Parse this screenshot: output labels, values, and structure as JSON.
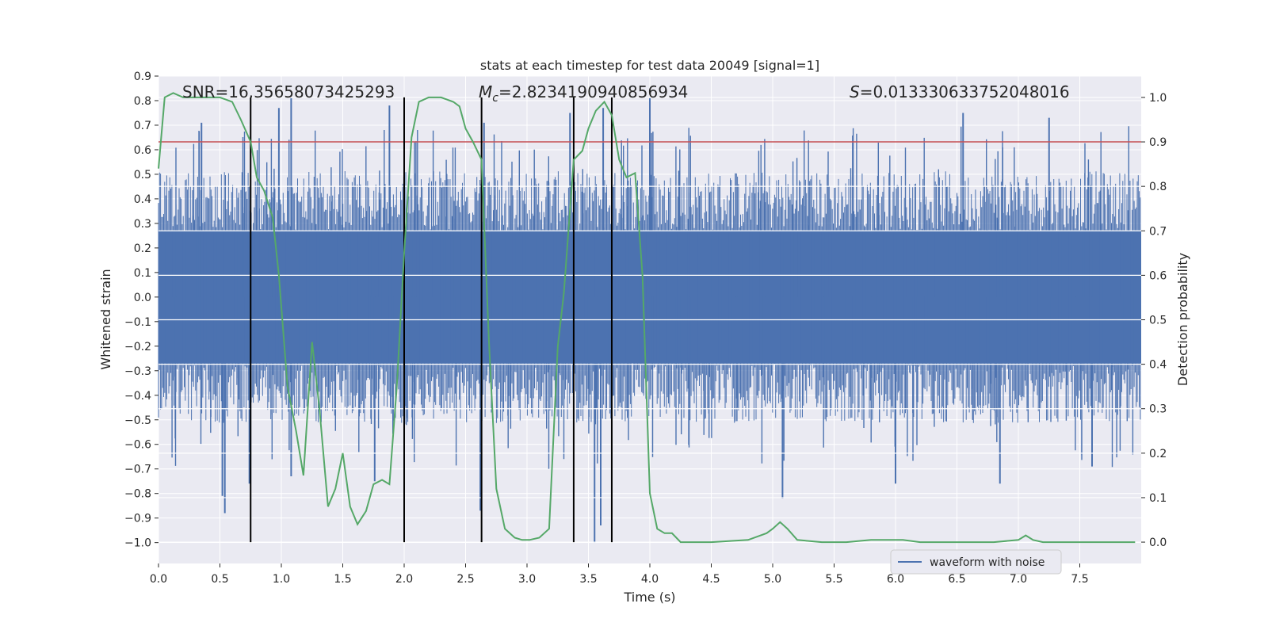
{
  "chart_data": {
    "type": "line",
    "title": "stats at each timestep for test data 20049 [signal=1]",
    "xlabel": "Time (s)",
    "ylabel_left": "Whitened strain",
    "ylabel_right": "Detection probability",
    "xlim": [
      0.0,
      8.0
    ],
    "ylim_left": [
      -1.085,
      0.9
    ],
    "ylim_right": [
      -0.048,
      1.048
    ],
    "x_ticks": [
      "0.0",
      "0.5",
      "1.0",
      "1.5",
      "2.0",
      "2.5",
      "3.0",
      "3.5",
      "4.0",
      "4.5",
      "5.0",
      "5.5",
      "6.0",
      "6.5",
      "7.0",
      "7.5"
    ],
    "y_left_ticks": [
      "0.9",
      "0.8",
      "0.7",
      "0.6",
      "0.5",
      "0.4",
      "0.3",
      "0.2",
      "0.1",
      "0.0",
      "−0.1",
      "−0.2",
      "−0.3",
      "−0.4",
      "−0.5",
      "−0.6",
      "−0.7",
      "−0.8",
      "−0.9",
      "−1.0"
    ],
    "y_right_ticks": [
      "1.0",
      "0.9",
      "0.8",
      "0.7",
      "0.6",
      "0.5",
      "0.4",
      "0.3",
      "0.2",
      "0.1",
      "0.0"
    ],
    "grid": true,
    "background": "#eaeaf2",
    "annotations": {
      "snr": "SNR=16.35658073425293",
      "mc_symbol": "M",
      "mc_sub": "c",
      "mc_value": "=2.8234190940856934",
      "s_symbol": "S",
      "s_value": "=0.013330633752048016"
    },
    "threshold_line": {
      "y_prob": 0.9,
      "color": "#c44e52"
    },
    "vertical_markers_s": [
      0.75,
      2.0,
      2.63,
      3.38,
      3.69
    ],
    "series": [
      {
        "name": "waveform with noise",
        "axis": "left",
        "color": "#4c72b0",
        "style": "noise",
        "core_amplitude": 0.27,
        "typical_peak": 0.45,
        "spikes": [
          {
            "x": 0.35,
            "y": 0.71
          },
          {
            "x": 0.98,
            "y": 0.77
          },
          {
            "x": 1.08,
            "y": 0.81
          },
          {
            "x": 1.88,
            "y": 0.78
          },
          {
            "x": 2.65,
            "y": 0.71
          },
          {
            "x": 3.35,
            "y": 0.75
          },
          {
            "x": 3.62,
            "y": 0.77
          },
          {
            "x": 4.0,
            "y": 0.81
          },
          {
            "x": 6.55,
            "y": 0.75
          },
          {
            "x": 7.25,
            "y": 0.73
          },
          {
            "x": 0.52,
            "y": -0.81
          },
          {
            "x": 0.54,
            "y": -0.88
          },
          {
            "x": 0.74,
            "y": -0.76
          },
          {
            "x": 1.08,
            "y": -0.73
          },
          {
            "x": 1.76,
            "y": -0.75
          },
          {
            "x": 2.62,
            "y": -0.87
          },
          {
            "x": 3.55,
            "y": -1.0
          },
          {
            "x": 3.6,
            "y": -0.93
          },
          {
            "x": 5.08,
            "y": -0.82
          },
          {
            "x": 6.0,
            "y": -0.76
          },
          {
            "x": 6.85,
            "y": -0.76
          },
          {
            "x": 7.6,
            "y": -0.69
          }
        ]
      },
      {
        "name": "",
        "axis": "right",
        "color": "#55a868",
        "style": "line",
        "x": [
          0.0,
          0.05,
          0.12,
          0.2,
          0.3,
          0.4,
          0.5,
          0.6,
          0.67,
          0.75,
          0.8,
          0.86,
          0.93,
          0.98,
          1.05,
          1.12,
          1.18,
          1.25,
          1.31,
          1.38,
          1.44,
          1.5,
          1.56,
          1.62,
          1.69,
          1.75,
          1.82,
          1.88,
          1.94,
          2.0,
          2.06,
          2.12,
          2.2,
          2.3,
          2.4,
          2.45,
          2.5,
          2.56,
          2.63,
          2.69,
          2.75,
          2.82,
          2.9,
          2.96,
          3.02,
          3.1,
          3.18,
          3.25,
          3.3,
          3.38,
          3.45,
          3.5,
          3.56,
          3.63,
          3.69,
          3.75,
          3.81,
          3.88,
          3.94,
          4.0,
          4.06,
          4.12,
          4.18,
          4.25,
          4.3,
          4.5,
          4.8,
          4.95,
          5.0,
          5.06,
          5.12,
          5.2,
          5.4,
          5.6,
          5.8,
          5.85,
          6.0,
          6.06,
          6.2,
          6.5,
          6.8,
          7.0,
          7.06,
          7.12,
          7.2,
          7.5,
          7.95
        ],
        "y": [
          0.84,
          1.0,
          1.01,
          1.0,
          1.0,
          1.0,
          1.0,
          0.99,
          0.95,
          0.9,
          0.82,
          0.79,
          0.73,
          0.6,
          0.35,
          0.25,
          0.15,
          0.45,
          0.3,
          0.08,
          0.12,
          0.2,
          0.08,
          0.04,
          0.07,
          0.13,
          0.14,
          0.13,
          0.35,
          0.65,
          0.91,
          0.99,
          1.0,
          1.0,
          0.99,
          0.98,
          0.93,
          0.9,
          0.86,
          0.45,
          0.12,
          0.03,
          0.01,
          0.005,
          0.005,
          0.01,
          0.03,
          0.44,
          0.56,
          0.86,
          0.88,
          0.93,
          0.97,
          0.99,
          0.96,
          0.86,
          0.82,
          0.83,
          0.6,
          0.11,
          0.03,
          0.02,
          0.02,
          0.0,
          0.0,
          0.0,
          0.005,
          0.02,
          0.03,
          0.045,
          0.03,
          0.005,
          0.0,
          0.0,
          0.005,
          0.005,
          0.005,
          0.005,
          0.0,
          0.0,
          0.0,
          0.005,
          0.015,
          0.005,
          0.0,
          0.0,
          0.0
        ]
      }
    ]
  }
}
